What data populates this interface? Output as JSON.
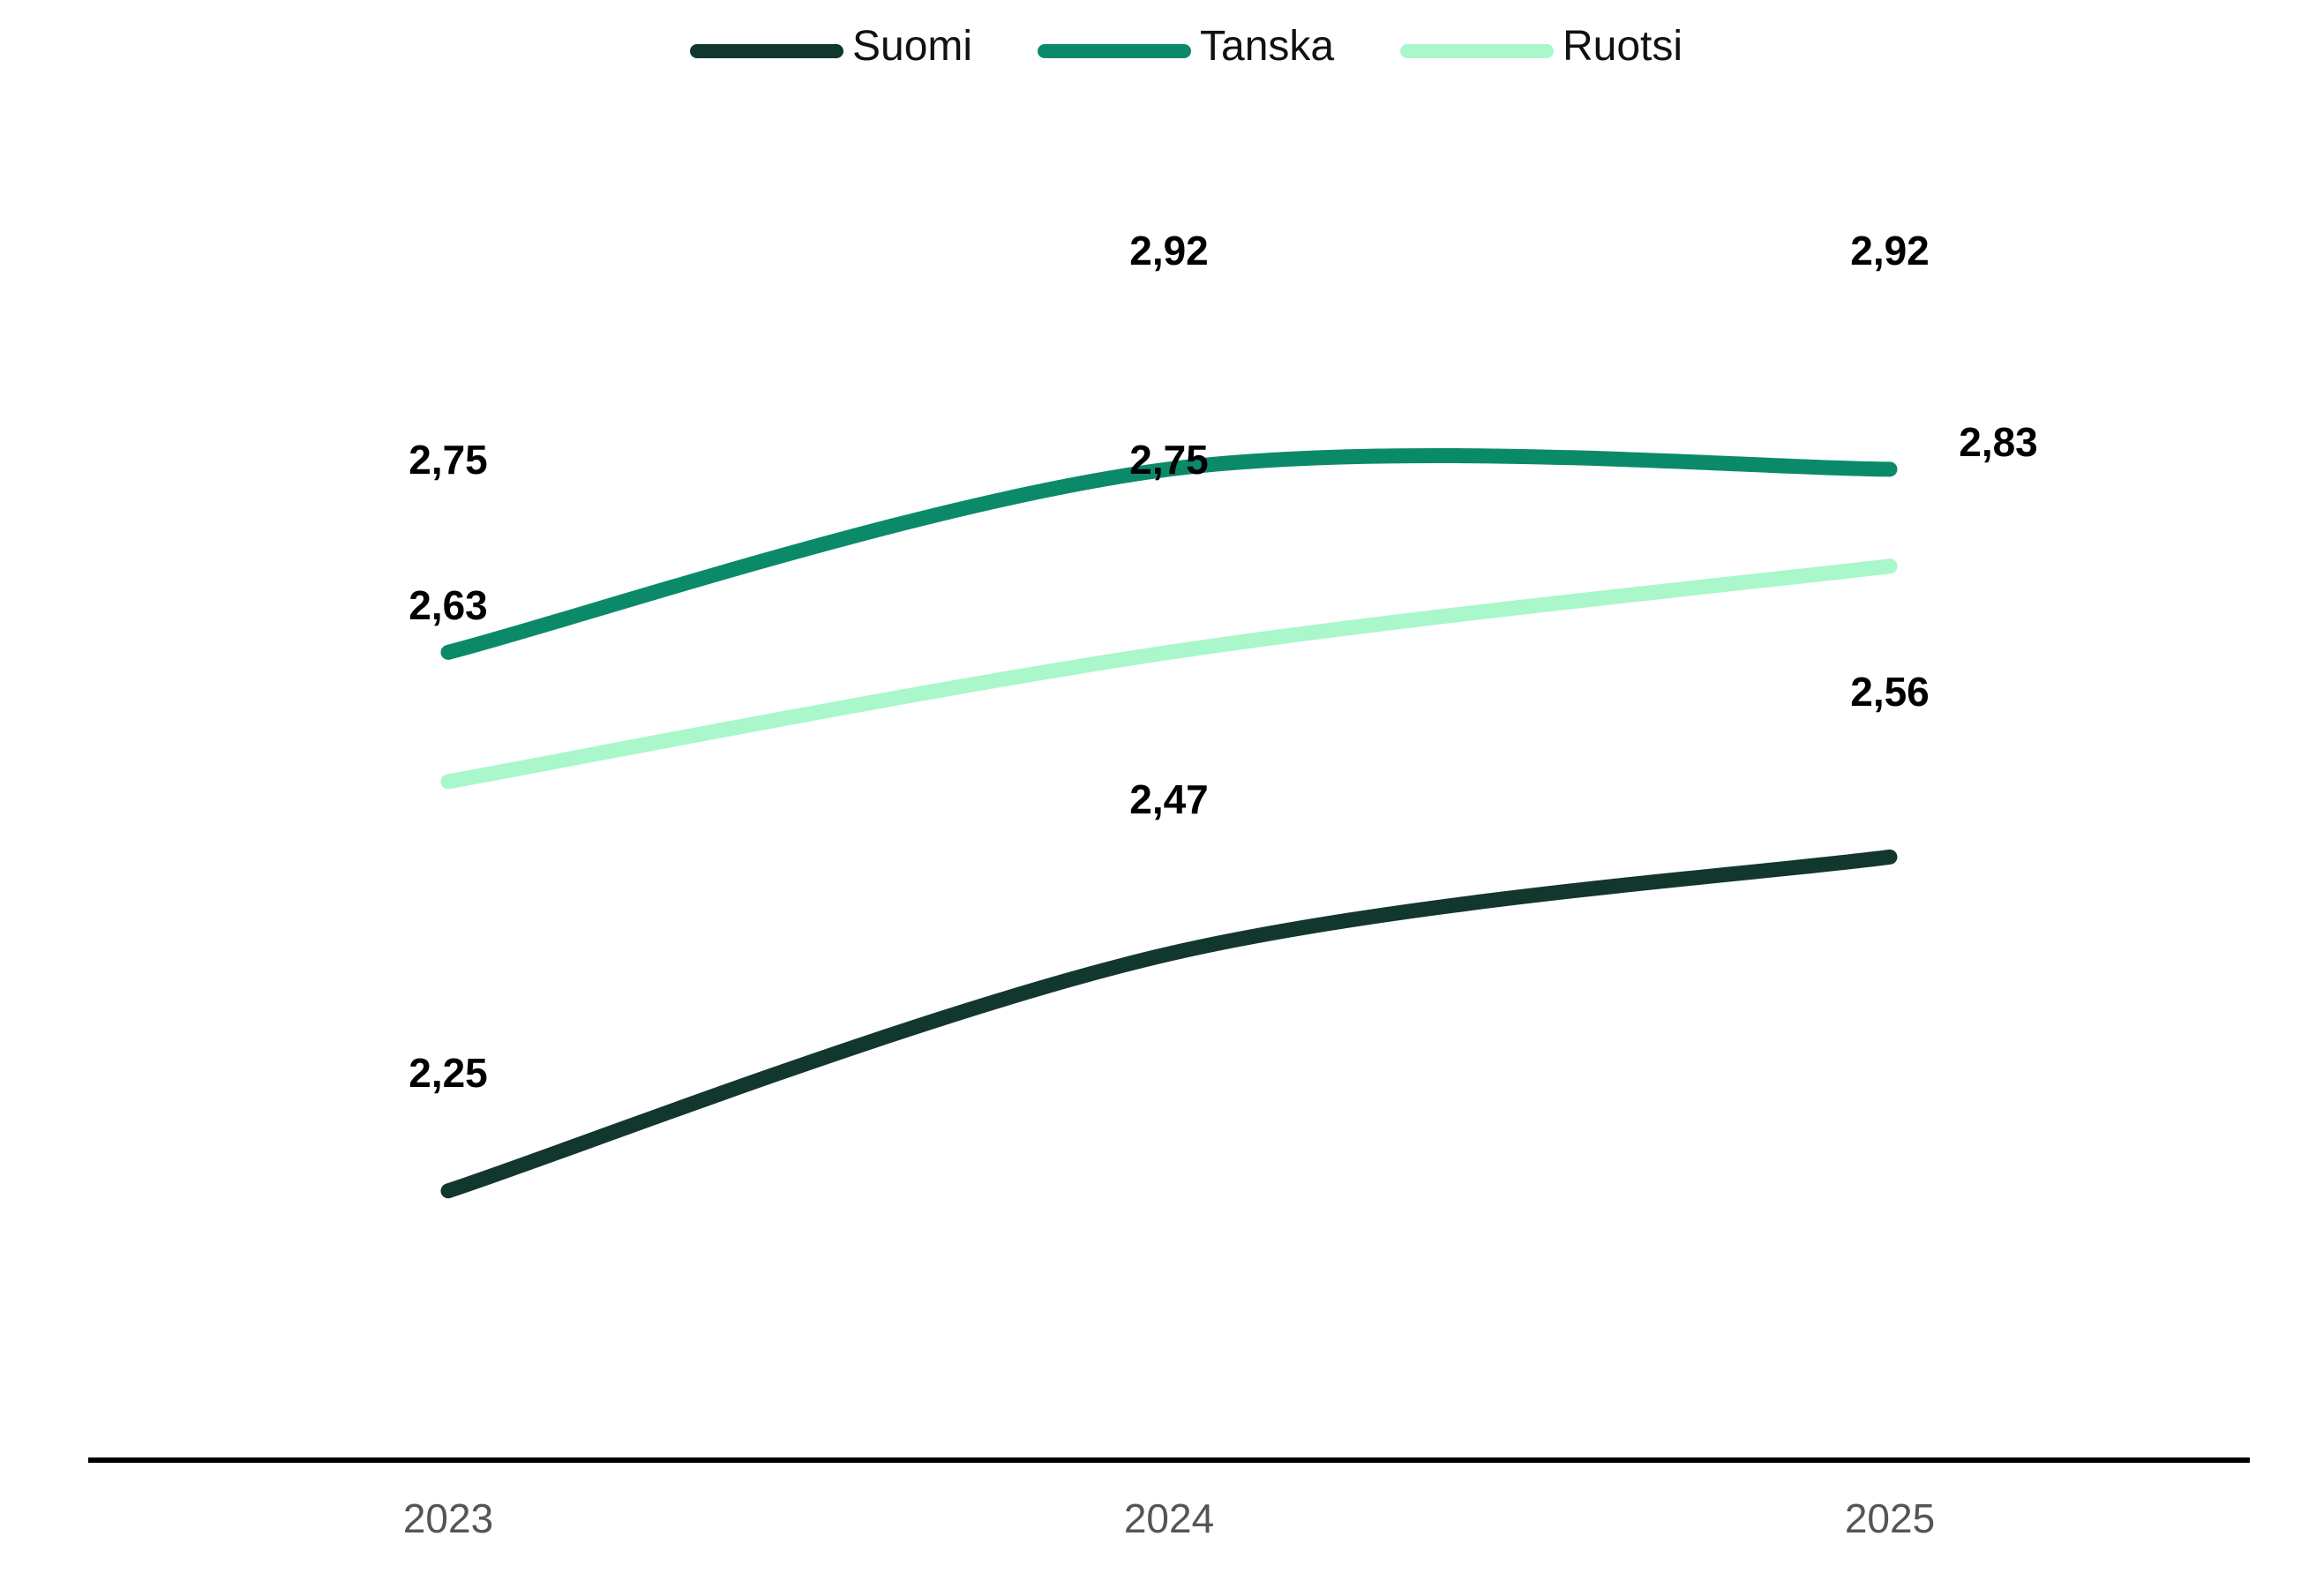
{
  "chart_data": {
    "type": "line",
    "title": "",
    "xlabel": "",
    "ylabel": "",
    "categories": [
      "2023",
      "2024",
      "2025"
    ],
    "ylim": [
      2.0,
      3.2
    ],
    "grid": false,
    "legend_position": "top-center",
    "series": [
      {
        "name": "Suomi",
        "color": "#12372f",
        "values": [
          2.25,
          2.47,
          2.56
        ],
        "labels": [
          "2,25",
          "2,47",
          "2,56"
        ]
      },
      {
        "name": "Tanska",
        "color": "#0b8a69",
        "values": [
          2.75,
          2.92,
          2.92
        ],
        "labels": [
          "2,75",
          "2,92",
          "2,92"
        ]
      },
      {
        "name": "Ruotsi",
        "color": "#a9f7cb",
        "values": [
          2.63,
          2.75,
          2.83
        ],
        "labels": [
          "2,63",
          "2,75",
          "2,83"
        ]
      }
    ]
  }
}
